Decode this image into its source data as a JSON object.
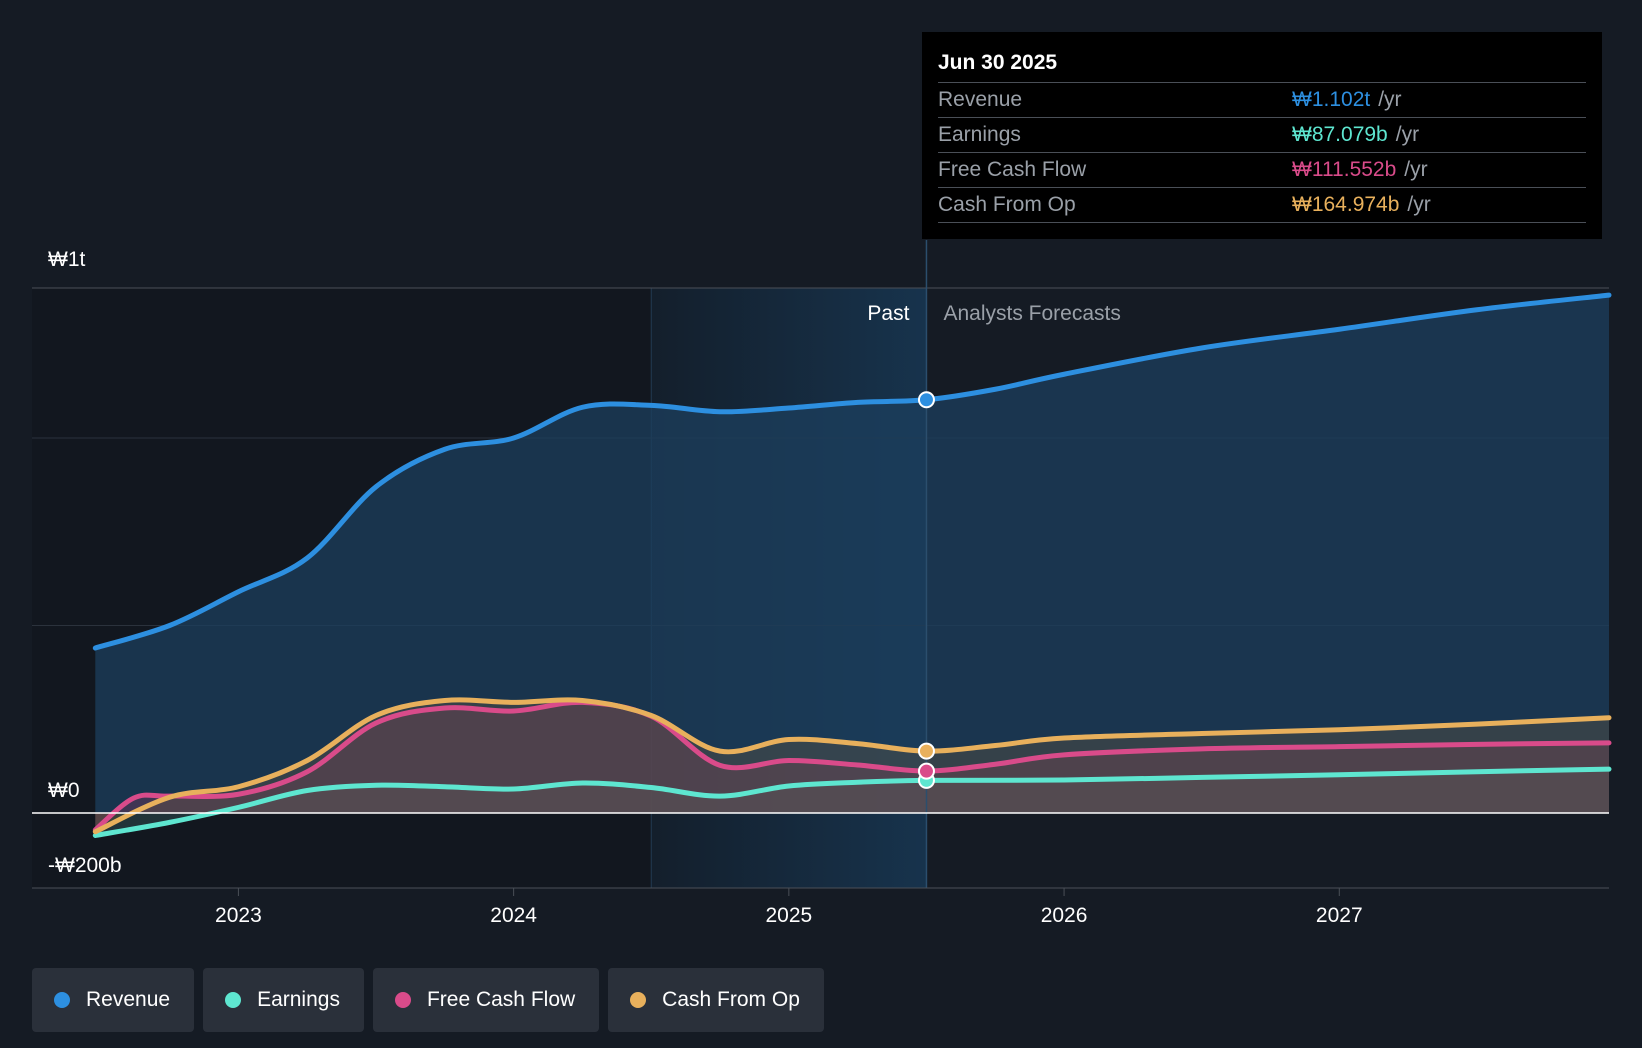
{
  "chart_data": {
    "type": "area",
    "currency_symbol": "₩",
    "y_axis_labels": [
      "₩1t",
      "₩0",
      "-₩200b"
    ],
    "ylim": [
      -200,
      1400
    ],
    "y_unit": "billion KRW",
    "x_ticks": [
      "2023",
      "2024",
      "2025",
      "2026",
      "2027"
    ],
    "x_tick_values": [
      2023.0,
      2024.0,
      2025.0,
      2026.0,
      2027.0
    ],
    "xlim": [
      2022.25,
      2027.98
    ],
    "past_label": "Past",
    "forecast_label": "Analysts Forecasts",
    "past_shade_start": 2024.5,
    "divider_x": 2025.5,
    "series": [
      {
        "name": "Revenue",
        "color": "#2d8fe0",
        "x": [
          2022.48,
          2022.75,
          2023.0,
          2023.25,
          2023.5,
          2023.75,
          2024.0,
          2024.25,
          2024.5,
          2024.75,
          2025.0,
          2025.25,
          2025.5,
          2025.75,
          2026.0,
          2026.5,
          2027.0,
          2027.5,
          2027.98
        ],
        "values": [
          440,
          500,
          590,
          680,
          870,
          970,
          1000,
          1082,
          1087,
          1070,
          1080,
          1095,
          1102,
          1130,
          1170,
          1240,
          1290,
          1342,
          1381
        ]
      },
      {
        "name": "Earnings",
        "color": "#5ee6d0",
        "x": [
          2022.48,
          2022.75,
          2023.0,
          2023.25,
          2023.5,
          2023.75,
          2024.0,
          2024.25,
          2024.5,
          2024.75,
          2025.0,
          2025.25,
          2025.5,
          2026.0,
          2026.5,
          2027.0,
          2027.5,
          2027.98
        ],
        "values": [
          -60,
          -25,
          15,
          60,
          74,
          70,
          64,
          80,
          68,
          45,
          72,
          82,
          87,
          88,
          95,
          102,
          110,
          117
        ]
      },
      {
        "name": "Free Cash Flow",
        "color": "#d94b8a",
        "x": [
          2022.48,
          2022.62,
          2022.75,
          2023.0,
          2023.25,
          2023.5,
          2023.75,
          2024.0,
          2024.25,
          2024.5,
          2024.75,
          2025.0,
          2025.25,
          2025.5,
          2025.75,
          2026.0,
          2026.5,
          2027.0,
          2027.5,
          2027.98
        ],
        "values": [
          -45,
          40,
          45,
          50,
          110,
          240,
          280,
          272,
          295,
          258,
          127,
          140,
          128,
          112,
          130,
          155,
          171,
          177,
          183,
          187
        ]
      },
      {
        "name": "Cash From Op",
        "color": "#e8b05c",
        "x": [
          2022.48,
          2022.75,
          2023.0,
          2023.25,
          2023.5,
          2023.75,
          2024.0,
          2024.25,
          2024.5,
          2024.75,
          2025.0,
          2025.25,
          2025.5,
          2025.75,
          2026.0,
          2026.5,
          2027.0,
          2027.5,
          2027.98
        ],
        "values": [
          -50,
          42,
          70,
          140,
          260,
          300,
          295,
          300,
          260,
          165,
          196,
          185,
          165,
          180,
          200,
          212,
          222,
          237,
          254
        ]
      }
    ],
    "highlight_x": 2025.5,
    "highlight_values": [
      1102,
      87.079,
      111.552,
      164.974
    ]
  },
  "tooltip": {
    "date": "Jun 30 2025",
    "rows": [
      {
        "label": "Revenue",
        "value": "₩1.102t",
        "unit": "/yr",
        "color": "#2d8fe0"
      },
      {
        "label": "Earnings",
        "value": "₩87.079b",
        "unit": "/yr",
        "color": "#5ee6d0"
      },
      {
        "label": "Free Cash Flow",
        "value": "₩111.552b",
        "unit": "/yr",
        "color": "#d94b8a"
      },
      {
        "label": "Cash From Op",
        "value": "₩164.974b",
        "unit": "/yr",
        "color": "#e8b05c"
      }
    ]
  },
  "legend": [
    {
      "label": "Revenue",
      "color": "#2d8fe0"
    },
    {
      "label": "Earnings",
      "color": "#5ee6d0"
    },
    {
      "label": "Free Cash Flow",
      "color": "#d94b8a"
    },
    {
      "label": "Cash From Op",
      "color": "#e8b05c"
    }
  ]
}
